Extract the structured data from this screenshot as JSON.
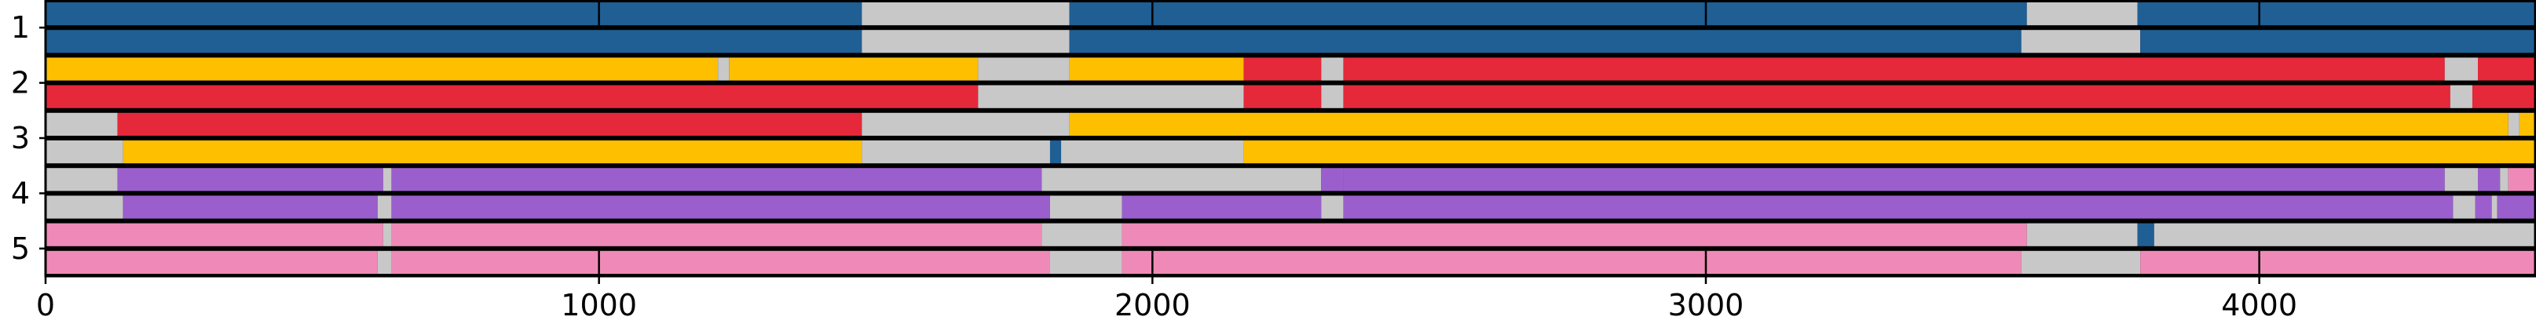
{
  "chart_data": {
    "type": "broken-bar",
    "title": "",
    "xlabel": "",
    "ylabel": "",
    "xlim": [
      0,
      4500
    ],
    "x_ticks": [
      0,
      1000,
      2000,
      3000,
      4000
    ],
    "y_tick_labels": [
      "1",
      "2",
      "3",
      "4",
      "5"
    ],
    "grid": false,
    "legend": "none",
    "colors": {
      "blue": "#1f5f94",
      "yellow": "#fdbf00",
      "red": "#e5283a",
      "purple": "#9b5fcd",
      "pink": "#ef8ab8",
      "gray": "#c8c8c8"
    },
    "tracks": [
      {
        "segments": [
          [
            "blue",
            0,
            1475
          ],
          [
            "gray",
            1475,
            1850
          ],
          [
            "blue",
            1850,
            3580
          ],
          [
            "gray",
            3580,
            3780
          ],
          [
            "blue",
            3780,
            4500
          ]
        ]
      },
      {
        "segments": [
          [
            "blue",
            0,
            1475
          ],
          [
            "gray",
            1475,
            1850
          ],
          [
            "blue",
            1850,
            3570
          ],
          [
            "gray",
            3570,
            3785
          ],
          [
            "blue",
            3785,
            4500
          ]
        ]
      },
      {
        "segments": [
          [
            "yellow",
            0,
            1215
          ],
          [
            "gray",
            1215,
            1235
          ],
          [
            "yellow",
            1235,
            1685
          ],
          [
            "gray",
            1685,
            1850
          ],
          [
            "yellow",
            1850,
            2165
          ],
          [
            "red",
            2165,
            2305
          ],
          [
            "gray",
            2305,
            2345
          ],
          [
            "red",
            2345,
            4335
          ],
          [
            "gray",
            4335,
            4395
          ],
          [
            "red",
            4395,
            4500
          ]
        ]
      },
      {
        "segments": [
          [
            "red",
            0,
            1685
          ],
          [
            "gray",
            1685,
            2165
          ],
          [
            "red",
            2165,
            2305
          ],
          [
            "gray",
            2305,
            2345
          ],
          [
            "red",
            2345,
            4345
          ],
          [
            "gray",
            4345,
            4385
          ],
          [
            "red",
            4385,
            4500
          ]
        ]
      },
      {
        "segments": [
          [
            "gray",
            0,
            130
          ],
          [
            "red",
            130,
            1475
          ],
          [
            "gray",
            1475,
            1850
          ],
          [
            "yellow",
            1850,
            4450
          ],
          [
            "gray",
            4450,
            4470
          ],
          [
            "yellow",
            4470,
            4500
          ]
        ]
      },
      {
        "segments": [
          [
            "gray",
            0,
            140
          ],
          [
            "yellow",
            140,
            1475
          ],
          [
            "gray",
            1475,
            1815
          ],
          [
            "blue",
            1815,
            1835
          ],
          [
            "gray",
            1835,
            2165
          ],
          [
            "yellow",
            2165,
            4500
          ]
        ]
      },
      {
        "segments": [
          [
            "gray",
            0,
            130
          ],
          [
            "purple",
            130,
            610
          ],
          [
            "gray",
            610,
            625
          ],
          [
            "purple",
            625,
            1800
          ],
          [
            "gray",
            1800,
            2305
          ],
          [
            "purple",
            2305,
            2345
          ],
          [
            "gray",
            2345,
            2345
          ],
          [
            "purple",
            2345,
            4335
          ],
          [
            "gray",
            4335,
            4395
          ],
          [
            "purple",
            4395,
            4435
          ],
          [
            "gray",
            4435,
            4450
          ],
          [
            "pink",
            4450,
            4500
          ]
        ]
      },
      {
        "segments": [
          [
            "gray",
            0,
            140
          ],
          [
            "purple",
            140,
            600
          ],
          [
            "gray",
            600,
            625
          ],
          [
            "purple",
            625,
            1815
          ],
          [
            "gray",
            1815,
            1945
          ],
          [
            "purple",
            1945,
            2305
          ],
          [
            "gray",
            2305,
            2345
          ],
          [
            "purple",
            2345,
            4350
          ],
          [
            "gray",
            4350,
            4390
          ],
          [
            "purple",
            4390,
            4420
          ],
          [
            "gray",
            4420,
            4430
          ],
          [
            "purple",
            4430,
            4500
          ]
        ]
      },
      {
        "segments": [
          [
            "pink",
            0,
            610
          ],
          [
            "gray",
            610,
            625
          ],
          [
            "pink",
            625,
            1800
          ],
          [
            "gray",
            1800,
            1945
          ],
          [
            "pink",
            1945,
            3580
          ],
          [
            "gray",
            3580,
            3780
          ],
          [
            "blue",
            3780,
            3810
          ],
          [
            "gray",
            3810,
            4500
          ]
        ]
      },
      {
        "segments": [
          [
            "pink",
            0,
            600
          ],
          [
            "gray",
            600,
            625
          ],
          [
            "pink",
            625,
            1815
          ],
          [
            "gray",
            1815,
            1945
          ],
          [
            "pink",
            1945,
            3570
          ],
          [
            "gray",
            3570,
            3785
          ],
          [
            "pink",
            3785,
            4500
          ]
        ]
      }
    ]
  }
}
